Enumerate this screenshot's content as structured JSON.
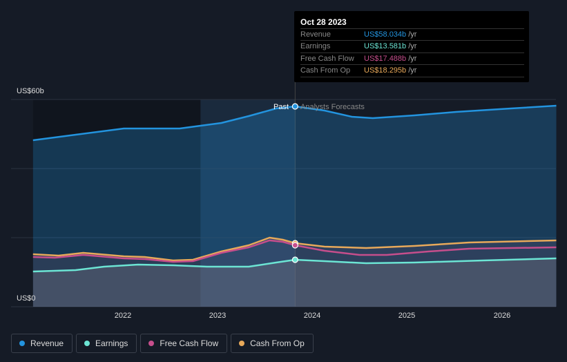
{
  "tooltip": {
    "date": "Oct 28 2023",
    "rows": [
      {
        "label": "Revenue",
        "value": "US$58.034b",
        "unit": "/yr",
        "color": "#2394df"
      },
      {
        "label": "Earnings",
        "value": "US$13.581b",
        "unit": "/yr",
        "color": "#6ce5d4"
      },
      {
        "label": "Free Cash Flow",
        "value": "US$17.488b",
        "unit": "/yr",
        "color": "#c64e8c"
      },
      {
        "label": "Cash From Op",
        "value": "US$18.295b",
        "unit": "/yr",
        "color": "#e8a95a"
      }
    ]
  },
  "labels": {
    "past": "Past",
    "forecast": "Analysts Forecasts"
  },
  "chart_data": {
    "type": "line",
    "ylim": [
      0,
      60
    ],
    "xlim": [
      2021.05,
      2026.58
    ],
    "y_ticks": [
      {
        "value": 60,
        "label": "US$60b"
      },
      {
        "value": 0,
        "label": "US$0"
      }
    ],
    "x_ticks": [
      {
        "value": 2022,
        "label": "2022"
      },
      {
        "value": 2023,
        "label": "2023"
      },
      {
        "value": 2024,
        "label": "2024"
      },
      {
        "value": 2025,
        "label": "2025"
      },
      {
        "value": 2026,
        "label": "2026"
      }
    ],
    "past_end": 2023.82,
    "highlight_start": 2022.82,
    "series": [
      {
        "name": "Revenue",
        "color": "#2394df",
        "points": [
          [
            2021.05,
            48.2
          ],
          [
            2021.5,
            49.8
          ],
          [
            2022.01,
            51.6
          ],
          [
            2022.6,
            51.6
          ],
          [
            2023.04,
            53.2
          ],
          [
            2023.33,
            55.2
          ],
          [
            2023.62,
            57.4
          ],
          [
            2023.82,
            58.0
          ],
          [
            2024.13,
            56.8
          ],
          [
            2024.42,
            55
          ],
          [
            2024.64,
            54.6
          ],
          [
            2025.08,
            55.4
          ],
          [
            2025.52,
            56.4
          ],
          [
            2026.1,
            57.4
          ],
          [
            2026.58,
            58.2
          ]
        ]
      },
      {
        "name": "Earnings",
        "color": "#6ce5d4",
        "points": [
          [
            2021.05,
            10.2
          ],
          [
            2021.5,
            10.6
          ],
          [
            2021.8,
            11.6
          ],
          [
            2022.16,
            12.2
          ],
          [
            2022.53,
            12
          ],
          [
            2022.89,
            11.6
          ],
          [
            2023.33,
            11.6
          ],
          [
            2023.62,
            12.8
          ],
          [
            2023.82,
            13.6
          ],
          [
            2024.13,
            13.2
          ],
          [
            2024.57,
            12.6
          ],
          [
            2025.08,
            12.8
          ],
          [
            2025.81,
            13.4
          ],
          [
            2026.58,
            14
          ]
        ]
      },
      {
        "name": "Free Cash Flow",
        "color": "#c64e8c",
        "points": [
          [
            2021.05,
            14.4
          ],
          [
            2021.28,
            14.2
          ],
          [
            2021.58,
            15
          ],
          [
            2022.01,
            14
          ],
          [
            2022.23,
            13.8
          ],
          [
            2022.53,
            13
          ],
          [
            2022.74,
            13.2
          ],
          [
            2023.04,
            15.6
          ],
          [
            2023.33,
            17.2
          ],
          [
            2023.55,
            19.2
          ],
          [
            2023.69,
            18.8
          ],
          [
            2023.82,
            17.8
          ],
          [
            2024.13,
            16.2
          ],
          [
            2024.5,
            15
          ],
          [
            2024.79,
            15
          ],
          [
            2025.23,
            16
          ],
          [
            2025.66,
            16.8
          ],
          [
            2026.58,
            17.2
          ]
        ]
      },
      {
        "name": "Cash From Op",
        "color": "#e8a95a",
        "points": [
          [
            2021.05,
            15.2
          ],
          [
            2021.32,
            14.8
          ],
          [
            2021.58,
            15.6
          ],
          [
            2022.01,
            14.6
          ],
          [
            2022.23,
            14.4
          ],
          [
            2022.53,
            13.4
          ],
          [
            2022.74,
            13.6
          ],
          [
            2023.04,
            16
          ],
          [
            2023.33,
            17.8
          ],
          [
            2023.55,
            20
          ],
          [
            2023.69,
            19.4
          ],
          [
            2023.82,
            18.4
          ],
          [
            2024.13,
            17.4
          ],
          [
            2024.57,
            17
          ],
          [
            2025.08,
            17.6
          ],
          [
            2025.66,
            18.6
          ],
          [
            2026.58,
            19.2
          ]
        ]
      }
    ]
  }
}
